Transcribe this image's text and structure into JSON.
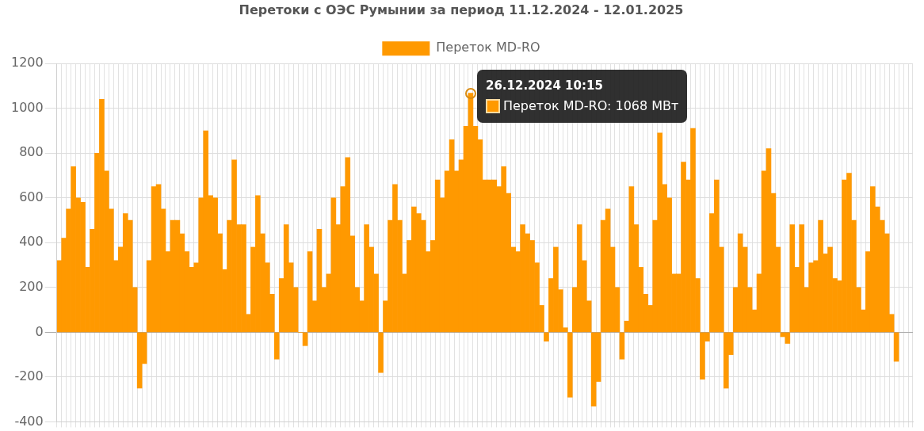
{
  "chart_data": {
    "type": "bar",
    "title": "Перетоки с ОЭС Румынии за период 11.12.2024 - 12.01.2025",
    "categories": [
      null,
      null,
      null,
      null,
      null,
      null,
      null,
      null,
      null,
      null,
      null,
      null,
      null,
      null,
      null,
      null,
      null,
      null,
      null,
      null,
      null,
      null,
      null,
      null,
      null,
      null,
      null,
      null,
      null,
      null,
      null,
      null,
      null,
      null,
      null,
      null,
      null,
      null,
      null,
      null,
      null,
      null,
      null,
      null,
      null,
      null,
      null,
      null,
      null,
      null,
      null,
      null,
      null,
      null,
      null,
      null,
      null,
      null,
      null,
      null,
      null,
      null,
      null,
      null,
      null,
      null,
      null,
      null,
      null,
      null,
      null,
      null,
      null,
      null,
      null,
      null,
      null,
      null,
      null,
      null,
      null,
      null,
      null,
      null,
      null,
      null,
      null,
      null,
      null,
      null,
      null,
      null,
      null,
      null,
      null,
      null,
      null,
      null,
      null,
      null,
      null,
      null,
      null,
      null,
      null,
      null,
      null,
      null,
      null,
      null,
      null,
      null,
      null,
      null,
      null,
      null,
      null,
      null,
      null,
      null,
      null,
      null,
      null,
      null,
      null,
      null,
      null,
      null,
      null,
      null,
      null,
      null,
      null,
      null,
      null,
      null,
      null,
      null,
      null,
      null,
      null,
      null,
      null,
      null,
      null,
      null,
      null,
      null,
      null,
      null,
      null,
      null,
      null,
      null,
      null,
      null,
      null,
      null,
      null,
      null,
      null,
      null,
      null,
      null,
      null,
      null,
      null,
      null,
      null,
      null,
      null,
      null,
      null,
      null,
      null,
      null,
      null,
      null,
      null,
      null,
      null
    ],
    "series": [
      {
        "name": "Переток MD-RO",
        "color": "#ff9900",
        "values": [
          320,
          420,
          550,
          740,
          600,
          580,
          290,
          460,
          800,
          1040,
          720,
          550,
          320,
          380,
          530,
          500,
          200,
          -250,
          -140,
          320,
          650,
          660,
          550,
          360,
          500,
          500,
          440,
          360,
          290,
          310,
          600,
          900,
          610,
          600,
          440,
          280,
          500,
          770,
          480,
          480,
          80,
          380,
          610,
          440,
          310,
          170,
          -120,
          240,
          480,
          310,
          200,
          0,
          -60,
          360,
          140,
          460,
          200,
          260,
          600,
          480,
          650,
          780,
          430,
          200,
          140,
          480,
          380,
          260,
          -180,
          140,
          500,
          660,
          500,
          260,
          410,
          560,
          530,
          500,
          360,
          410,
          680,
          600,
          720,
          860,
          720,
          770,
          920,
          1068,
          920,
          860,
          680,
          680,
          680,
          650,
          740,
          620,
          380,
          360,
          480,
          440,
          410,
          310,
          120,
          -40,
          240,
          380,
          190,
          20,
          -290,
          200,
          480,
          320,
          140,
          -330,
          -220,
          500,
          550,
          380,
          200,
          -120,
          50,
          650,
          480,
          290,
          170,
          120,
          500,
          890,
          660,
          600,
          260,
          260,
          760,
          680,
          910,
          240,
          -210,
          -40,
          530,
          680,
          380,
          -250,
          -100,
          200,
          440,
          380,
          200,
          100,
          260,
          720,
          820,
          620,
          380,
          -20,
          -50,
          480,
          290,
          480,
          200,
          310,
          320,
          500,
          350,
          380,
          240,
          230,
          680,
          710,
          500,
          200,
          100,
          360,
          650,
          560,
          500,
          440,
          80,
          -130,
          null,
          null,
          null
        ]
      }
    ],
    "ylim": [
      -400,
      1200
    ],
    "yticks": [
      -400,
      -200,
      0,
      200,
      400,
      600,
      800,
      1000,
      1200
    ],
    "grid": true,
    "legend": "top",
    "tick_labels": "y",
    "annotations": [
      "26.12.2024 10:15\nПереток MD-RO: 1068 МВт"
    ]
  }
}
